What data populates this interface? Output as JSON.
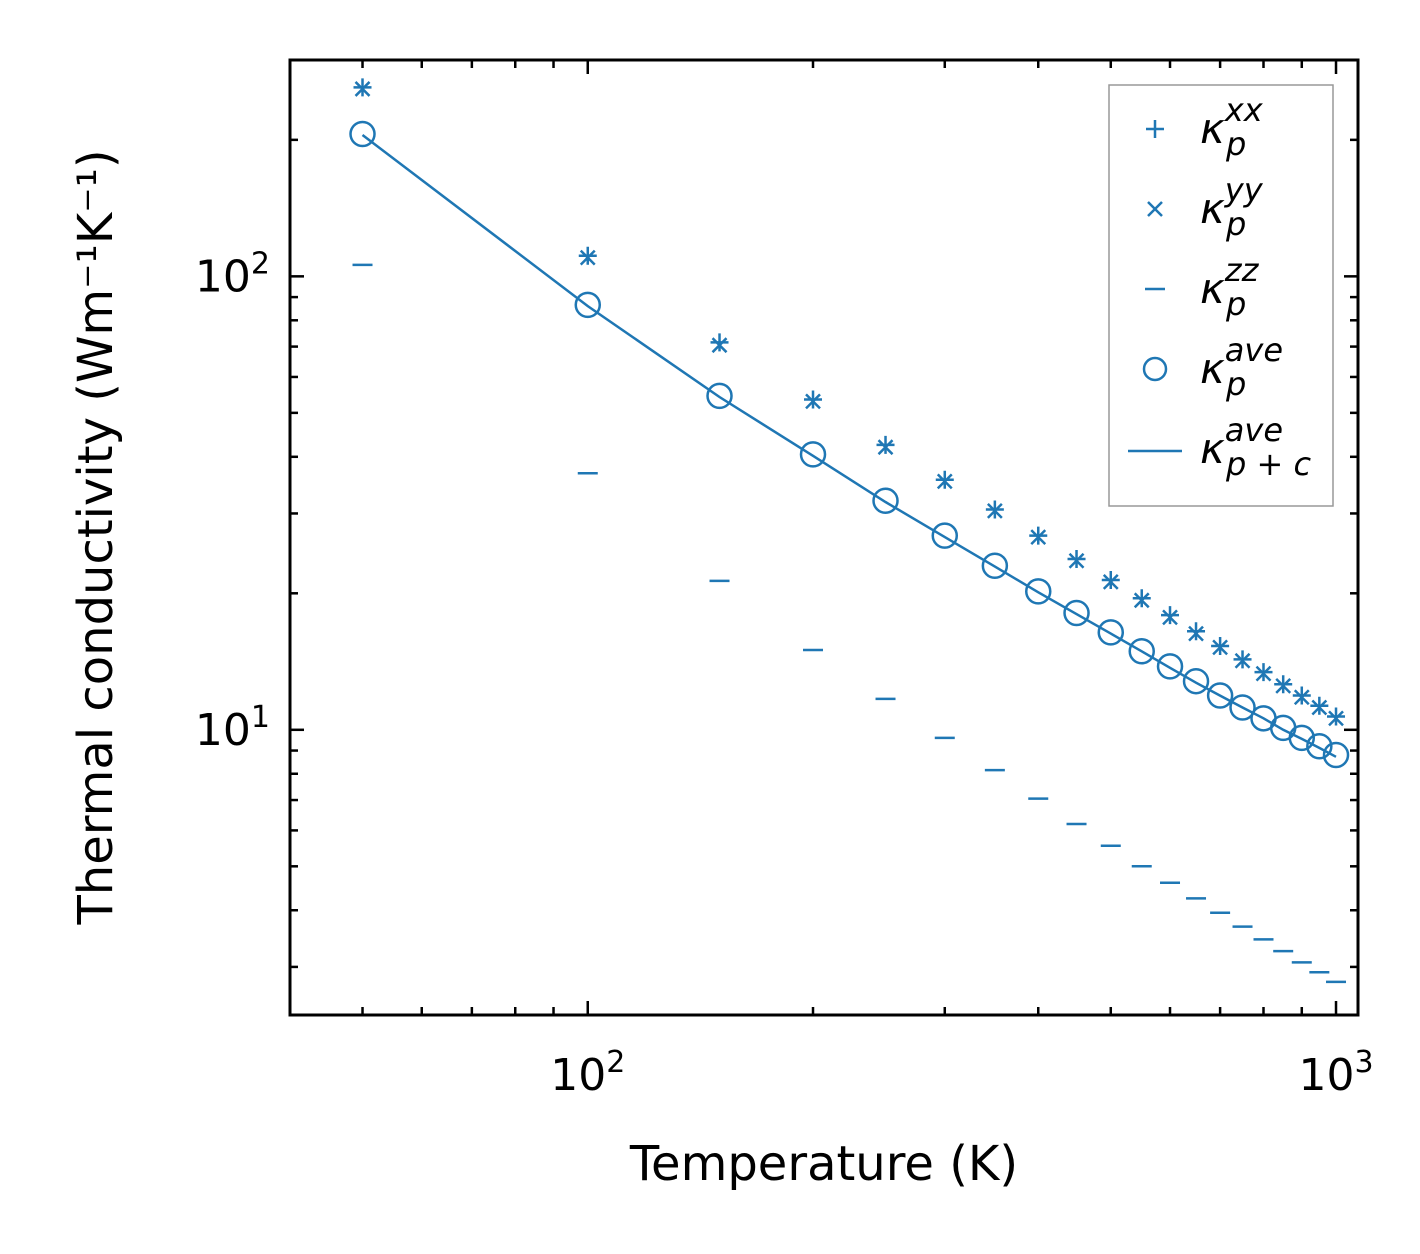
{
  "chart_data": {
    "type": "scatter",
    "scale": {
      "x": "log",
      "y": "log"
    },
    "xlabel": "Temperature (K)",
    "ylabel": "Thermal conductivity (Wm⁻¹K⁻¹)",
    "xlim": [
      40,
      1070
    ],
    "ylim": [
      2.35,
      300
    ],
    "x_ticks": [
      {
        "value": 100,
        "base": "10",
        "exp": "2"
      },
      {
        "value": 1000,
        "base": "10",
        "exp": "3"
      }
    ],
    "y_ticks": [
      {
        "value": 10,
        "base": "10",
        "exp": "1"
      },
      {
        "value": 100,
        "base": "10",
        "exp": "2"
      }
    ],
    "color": "#1f77b4",
    "x": [
      50,
      100,
      150,
      200,
      250,
      300,
      350,
      400,
      450,
      500,
      550,
      600,
      650,
      700,
      750,
      800,
      850,
      900,
      950,
      1000
    ],
    "series": [
      {
        "name": "kp_xx",
        "marker": "plus",
        "values": [
          261,
          111,
          71.5,
          53.5,
          42.5,
          35.6,
          30.6,
          26.8,
          23.8,
          21.4,
          19.5,
          17.9,
          16.5,
          15.3,
          14.3,
          13.4,
          12.6,
          11.9,
          11.3,
          10.7
        ]
      },
      {
        "name": "kp_yy",
        "marker": "x",
        "values": [
          259,
          110,
          70.5,
          53.0,
          42.0,
          35.3,
          30.4,
          26.6,
          23.6,
          21.2,
          19.3,
          17.7,
          16.3,
          15.2,
          14.2,
          13.3,
          12.5,
          11.8,
          11.2,
          10.6
        ]
      },
      {
        "name": "kp_zz",
        "marker": "hline",
        "values": [
          106,
          36.8,
          21.3,
          15.0,
          11.7,
          9.6,
          8.15,
          7.05,
          6.2,
          5.55,
          5.0,
          4.6,
          4.25,
          3.95,
          3.68,
          3.45,
          3.25,
          3.07,
          2.92,
          2.78
        ]
      },
      {
        "name": "kp_ave",
        "marker": "circle",
        "values": [
          206,
          86.5,
          54.5,
          40.5,
          32.0,
          26.8,
          23.0,
          20.2,
          18.1,
          16.4,
          14.9,
          13.8,
          12.8,
          11.9,
          11.2,
          10.6,
          10.1,
          9.6,
          9.2,
          8.8
        ]
      },
      {
        "name": "kpc_ave",
        "marker": "line",
        "values": [
          205,
          86.0,
          54.2,
          40.2,
          31.8,
          26.6,
          22.9,
          20.1,
          18.0,
          16.3,
          14.9,
          13.7,
          12.7,
          11.9,
          11.2,
          10.6,
          10.0,
          9.55,
          9.12,
          8.72
        ]
      }
    ],
    "legend": {
      "position": "top-right",
      "entries": [
        {
          "series": "kp_xx",
          "main": "κ",
          "sub": "p",
          "sup": "xx"
        },
        {
          "series": "kp_yy",
          "main": "κ",
          "sub": "p",
          "sup": "yy"
        },
        {
          "series": "kp_zz",
          "main": "κ",
          "sub": "p",
          "sup": "zz"
        },
        {
          "series": "kp_ave",
          "main": "κ",
          "sub": "p",
          "sup": "ave"
        },
        {
          "series": "kpc_ave",
          "main": "κ",
          "sub": "p + c",
          "sup": "ave"
        }
      ]
    }
  }
}
